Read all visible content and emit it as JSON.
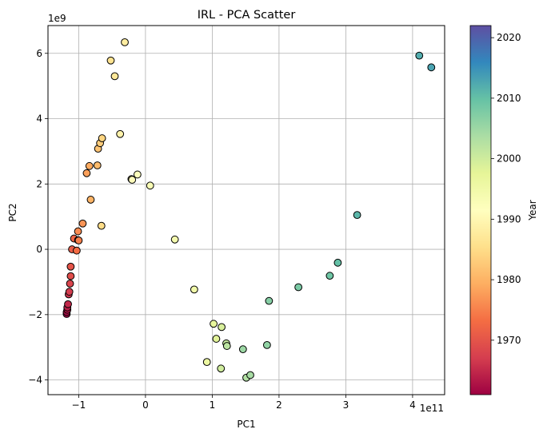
{
  "chart_data": {
    "type": "scatter",
    "title": "IRL - PCA Scatter",
    "xlabel": "PC1",
    "ylabel": "PC2",
    "x_offset_label": "1e11",
    "y_offset_label": "1e9",
    "xlim": [
      -1.46,
      4.48
    ],
    "ylim": [
      -4.45,
      6.85
    ],
    "x_ticks": [
      -1,
      0,
      1,
      2,
      3,
      4
    ],
    "y_ticks": [
      -4,
      -2,
      0,
      2,
      4,
      6
    ],
    "grid": true,
    "colorbar": {
      "label": "Year",
      "colormap": "Spectral",
      "range": [
        1961,
        2022
      ],
      "ticks": [
        1970,
        1980,
        1990,
        2000,
        2010,
        2020
      ]
    },
    "points": [
      {
        "x": -1.18,
        "y": -1.98,
        "year": 1961
      },
      {
        "x": -1.18,
        "y": -1.92,
        "year": 1962
      },
      {
        "x": -1.17,
        "y": -1.85,
        "year": 1963
      },
      {
        "x": -1.17,
        "y": -1.78,
        "year": 1964
      },
      {
        "x": -1.16,
        "y": -1.68,
        "year": 1965
      },
      {
        "x": -1.15,
        "y": -1.38,
        "year": 1966
      },
      {
        "x": -1.14,
        "y": -1.3,
        "year": 1967
      },
      {
        "x": -1.13,
        "y": -1.05,
        "year": 1968
      },
      {
        "x": -1.12,
        "y": -0.82,
        "year": 1969
      },
      {
        "x": -1.12,
        "y": -0.53,
        "year": 1970
      },
      {
        "x": -1.1,
        "y": 0.0,
        "year": 1971
      },
      {
        "x": -1.07,
        "y": 0.33,
        "year": 1972
      },
      {
        "x": -1.03,
        "y": -0.04,
        "year": 1973
      },
      {
        "x": -1.01,
        "y": 0.28,
        "year": 1974
      },
      {
        "x": -1.0,
        "y": 0.27,
        "year": 1975
      },
      {
        "x": -1.01,
        "y": 0.55,
        "year": 1976
      },
      {
        "x": -0.94,
        "y": 0.79,
        "year": 1977
      },
      {
        "x": -0.88,
        "y": 2.33,
        "year": 1978
      },
      {
        "x": -0.84,
        "y": 2.55,
        "year": 1979
      },
      {
        "x": -0.82,
        "y": 1.52,
        "year": 1980
      },
      {
        "x": -0.72,
        "y": 2.57,
        "year": 1981
      },
      {
        "x": -0.71,
        "y": 3.08,
        "year": 1982
      },
      {
        "x": -0.68,
        "y": 3.25,
        "year": 1983
      },
      {
        "x": -0.65,
        "y": 3.4,
        "year": 1984
      },
      {
        "x": -0.66,
        "y": 0.72,
        "year": 1985
      },
      {
        "x": -0.52,
        "y": 5.78,
        "year": 1986
      },
      {
        "x": -0.46,
        "y": 5.3,
        "year": 1987
      },
      {
        "x": -0.31,
        "y": 6.34,
        "year": 1988
      },
      {
        "x": -0.38,
        "y": 3.53,
        "year": 1989
      },
      {
        "x": -0.21,
        "y": 2.15,
        "year": 1990
      },
      {
        "x": -0.2,
        "y": 2.13,
        "year": 1991
      },
      {
        "x": -0.12,
        "y": 2.29,
        "year": 1992
      },
      {
        "x": 0.07,
        "y": 1.95,
        "year": 1993
      },
      {
        "x": 0.44,
        "y": 0.3,
        "year": 1994
      },
      {
        "x": 0.73,
        "y": -1.23,
        "year": 1995
      },
      {
        "x": 0.92,
        "y": -3.45,
        "year": 1996
      },
      {
        "x": 1.02,
        "y": -2.28,
        "year": 1997
      },
      {
        "x": 1.06,
        "y": -2.74,
        "year": 1998
      },
      {
        "x": 1.14,
        "y": -2.38,
        "year": 1999
      },
      {
        "x": 1.13,
        "y": -3.65,
        "year": 2000
      },
      {
        "x": 1.21,
        "y": -2.88,
        "year": 2001
      },
      {
        "x": 1.22,
        "y": -2.96,
        "year": 2002
      },
      {
        "x": 1.51,
        "y": -3.93,
        "year": 2003
      },
      {
        "x": 1.57,
        "y": -3.85,
        "year": 2004
      },
      {
        "x": 1.46,
        "y": -3.06,
        "year": 2005
      },
      {
        "x": 1.82,
        "y": -2.93,
        "year": 2006
      },
      {
        "x": 1.85,
        "y": -1.58,
        "year": 2007
      },
      {
        "x": 2.29,
        "y": -1.16,
        "year": 2008
      },
      {
        "x": 2.76,
        "y": -0.81,
        "year": 2009
      },
      {
        "x": 2.88,
        "y": -0.41,
        "year": 2010
      },
      {
        "x": 3.17,
        "y": 1.05,
        "year": 2011
      },
      {
        "x": 4.1,
        "y": 5.93,
        "year": 2012
      },
      {
        "x": 4.28,
        "y": 5.57,
        "year": 2013
      }
    ]
  }
}
